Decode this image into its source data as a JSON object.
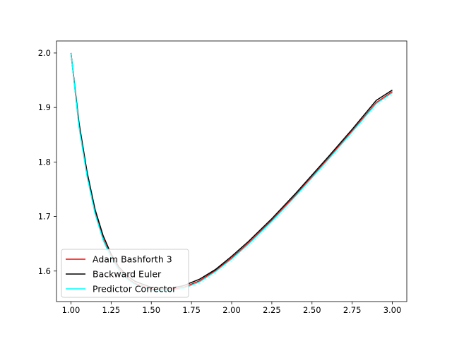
{
  "chart_data": {
    "type": "line",
    "title": "",
    "xlabel": "",
    "ylabel": "",
    "xlim": [
      0.91,
      3.09
    ],
    "ylim": [
      1.544,
      2.022
    ],
    "xticks": [
      1.0,
      1.25,
      1.5,
      1.75,
      2.0,
      2.25,
      2.5,
      2.75,
      3.0
    ],
    "xtick_labels": [
      "1.00",
      "1.25",
      "1.50",
      "1.75",
      "2.00",
      "2.25",
      "2.50",
      "2.75",
      "3.00"
    ],
    "yticks": [
      1.6,
      1.7,
      1.8,
      1.9,
      2.0
    ],
    "ytick_labels": [
      "1.6",
      "1.7",
      "1.8",
      "1.9",
      "2.0"
    ],
    "grid": false,
    "legend_position": "lower-left",
    "x": [
      1.0,
      1.05,
      1.1,
      1.15,
      1.2,
      1.25,
      1.3,
      1.35,
      1.4,
      1.5,
      1.6,
      1.7,
      1.8,
      1.9,
      2.0,
      2.1,
      2.25,
      2.4,
      2.5,
      2.6,
      2.75,
      2.9,
      3.0
    ],
    "series": [
      {
        "name": "Adam Bashforth 3",
        "color": "#ff0000",
        "values": [
          2.0,
          1.866,
          1.776,
          1.707,
          1.659,
          1.626,
          1.603,
          1.587,
          1.577,
          1.567,
          1.566,
          1.57,
          1.582,
          1.601,
          1.624,
          1.65,
          1.693,
          1.74,
          1.773,
          1.806,
          1.857,
          1.909,
          1.929
        ]
      },
      {
        "name": "Backward Euler",
        "color": "#000000",
        "values": [
          2.0,
          1.872,
          1.782,
          1.713,
          1.665,
          1.631,
          1.607,
          1.591,
          1.581,
          1.57,
          1.568,
          1.573,
          1.585,
          1.603,
          1.627,
          1.653,
          1.696,
          1.743,
          1.776,
          1.809,
          1.86,
          1.913,
          1.932
        ]
      },
      {
        "name": "Predictor Corrector",
        "color": "#00ffff",
        "values": [
          2.0,
          1.864,
          1.774,
          1.705,
          1.657,
          1.624,
          1.601,
          1.585,
          1.575,
          1.565,
          1.564,
          1.568,
          1.58,
          1.599,
          1.622,
          1.648,
          1.691,
          1.738,
          1.771,
          1.804,
          1.855,
          1.907,
          1.927
        ]
      }
    ]
  }
}
